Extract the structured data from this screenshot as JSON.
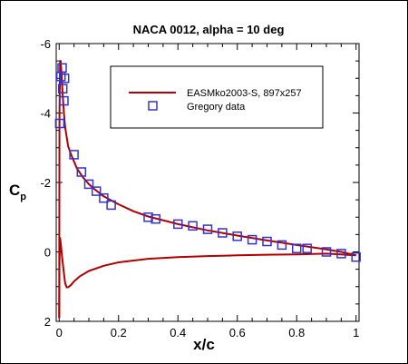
{
  "chart_data": {
    "type": "line",
    "title": "NACA 0012, alpha = 10 deg",
    "xlabel": "x/c",
    "ylabel": "C",
    "ylabel_sub": "p",
    "xlim": [
      -0.01,
      1.01
    ],
    "ylim": [
      2,
      -6
    ],
    "y_inverted": true,
    "grid": false,
    "legend_placement": "top-right",
    "x_ticks": [
      0,
      0.2,
      0.4,
      0.6,
      0.8,
      1
    ],
    "x_tick_labels": [
      "0",
      "0.2",
      "0.4",
      "0.6",
      "0.8",
      "1"
    ],
    "y_ticks": [
      -6,
      -4,
      -2,
      0,
      2
    ],
    "y_tick_labels": [
      "-6",
      "-4",
      "-2",
      "0",
      "2"
    ],
    "colors": {
      "line": "#b00000",
      "markers": "#3333cc"
    },
    "series": [
      {
        "name": "EASMko2003-S, 897x257",
        "kind": "line",
        "upper": {
          "x": [
            0,
            0.001,
            0.003,
            0.005,
            0.008,
            0.012,
            0.016,
            0.02,
            0.03,
            0.04,
            0.06,
            0.08,
            0.1,
            0.12,
            0.15,
            0.2,
            0.25,
            0.3,
            0.4,
            0.5,
            0.6,
            0.7,
            0.8,
            0.9,
            0.95,
            1.0
          ],
          "y": [
            1.9,
            -4.0,
            -5.5,
            -5.5,
            -5.1,
            -4.5,
            -4.0,
            -3.6,
            -3.05,
            -2.8,
            -2.4,
            -2.15,
            -1.95,
            -1.8,
            -1.6,
            -1.37,
            -1.17,
            -1.02,
            -0.8,
            -0.62,
            -0.47,
            -0.33,
            -0.2,
            -0.07,
            0.0,
            0.1
          ]
        },
        "lower": {
          "x": [
            0,
            0.001,
            0.003,
            0.006,
            0.01,
            0.015,
            0.02,
            0.025,
            0.03,
            0.04,
            0.05,
            0.07,
            0.1,
            0.15,
            0.2,
            0.3,
            0.4,
            0.5,
            0.6,
            0.7,
            0.8,
            0.9,
            1.0
          ],
          "y": [
            1.9,
            0.3,
            -0.4,
            -0.2,
            0.15,
            0.55,
            0.9,
            1.02,
            1.02,
            0.95,
            0.85,
            0.7,
            0.55,
            0.4,
            0.3,
            0.2,
            0.15,
            0.12,
            0.1,
            0.08,
            0.07,
            0.05,
            0.1
          ]
        }
      },
      {
        "name": "Gregory data",
        "kind": "scatter",
        "x": [
          0.002,
          0.006,
          0.01,
          0.012,
          0.016,
          0.018,
          0.05,
          0.075,
          0.1,
          0.125,
          0.15,
          0.175,
          0.3,
          0.325,
          0.4,
          0.45,
          0.5,
          0.55,
          0.6,
          0.65,
          0.7,
          0.75,
          0.8,
          0.835,
          0.9,
          0.95,
          1.0
        ],
        "y": [
          -3.7,
          -5.05,
          -5.3,
          -4.7,
          -4.35,
          -5.0,
          -2.8,
          -2.3,
          -1.95,
          -1.75,
          -1.55,
          -1.35,
          -1.0,
          -0.95,
          -0.8,
          -0.75,
          -0.65,
          -0.55,
          -0.45,
          -0.35,
          -0.3,
          -0.2,
          -0.1,
          -0.1,
          0.0,
          0.05,
          0.15
        ]
      }
    ]
  }
}
